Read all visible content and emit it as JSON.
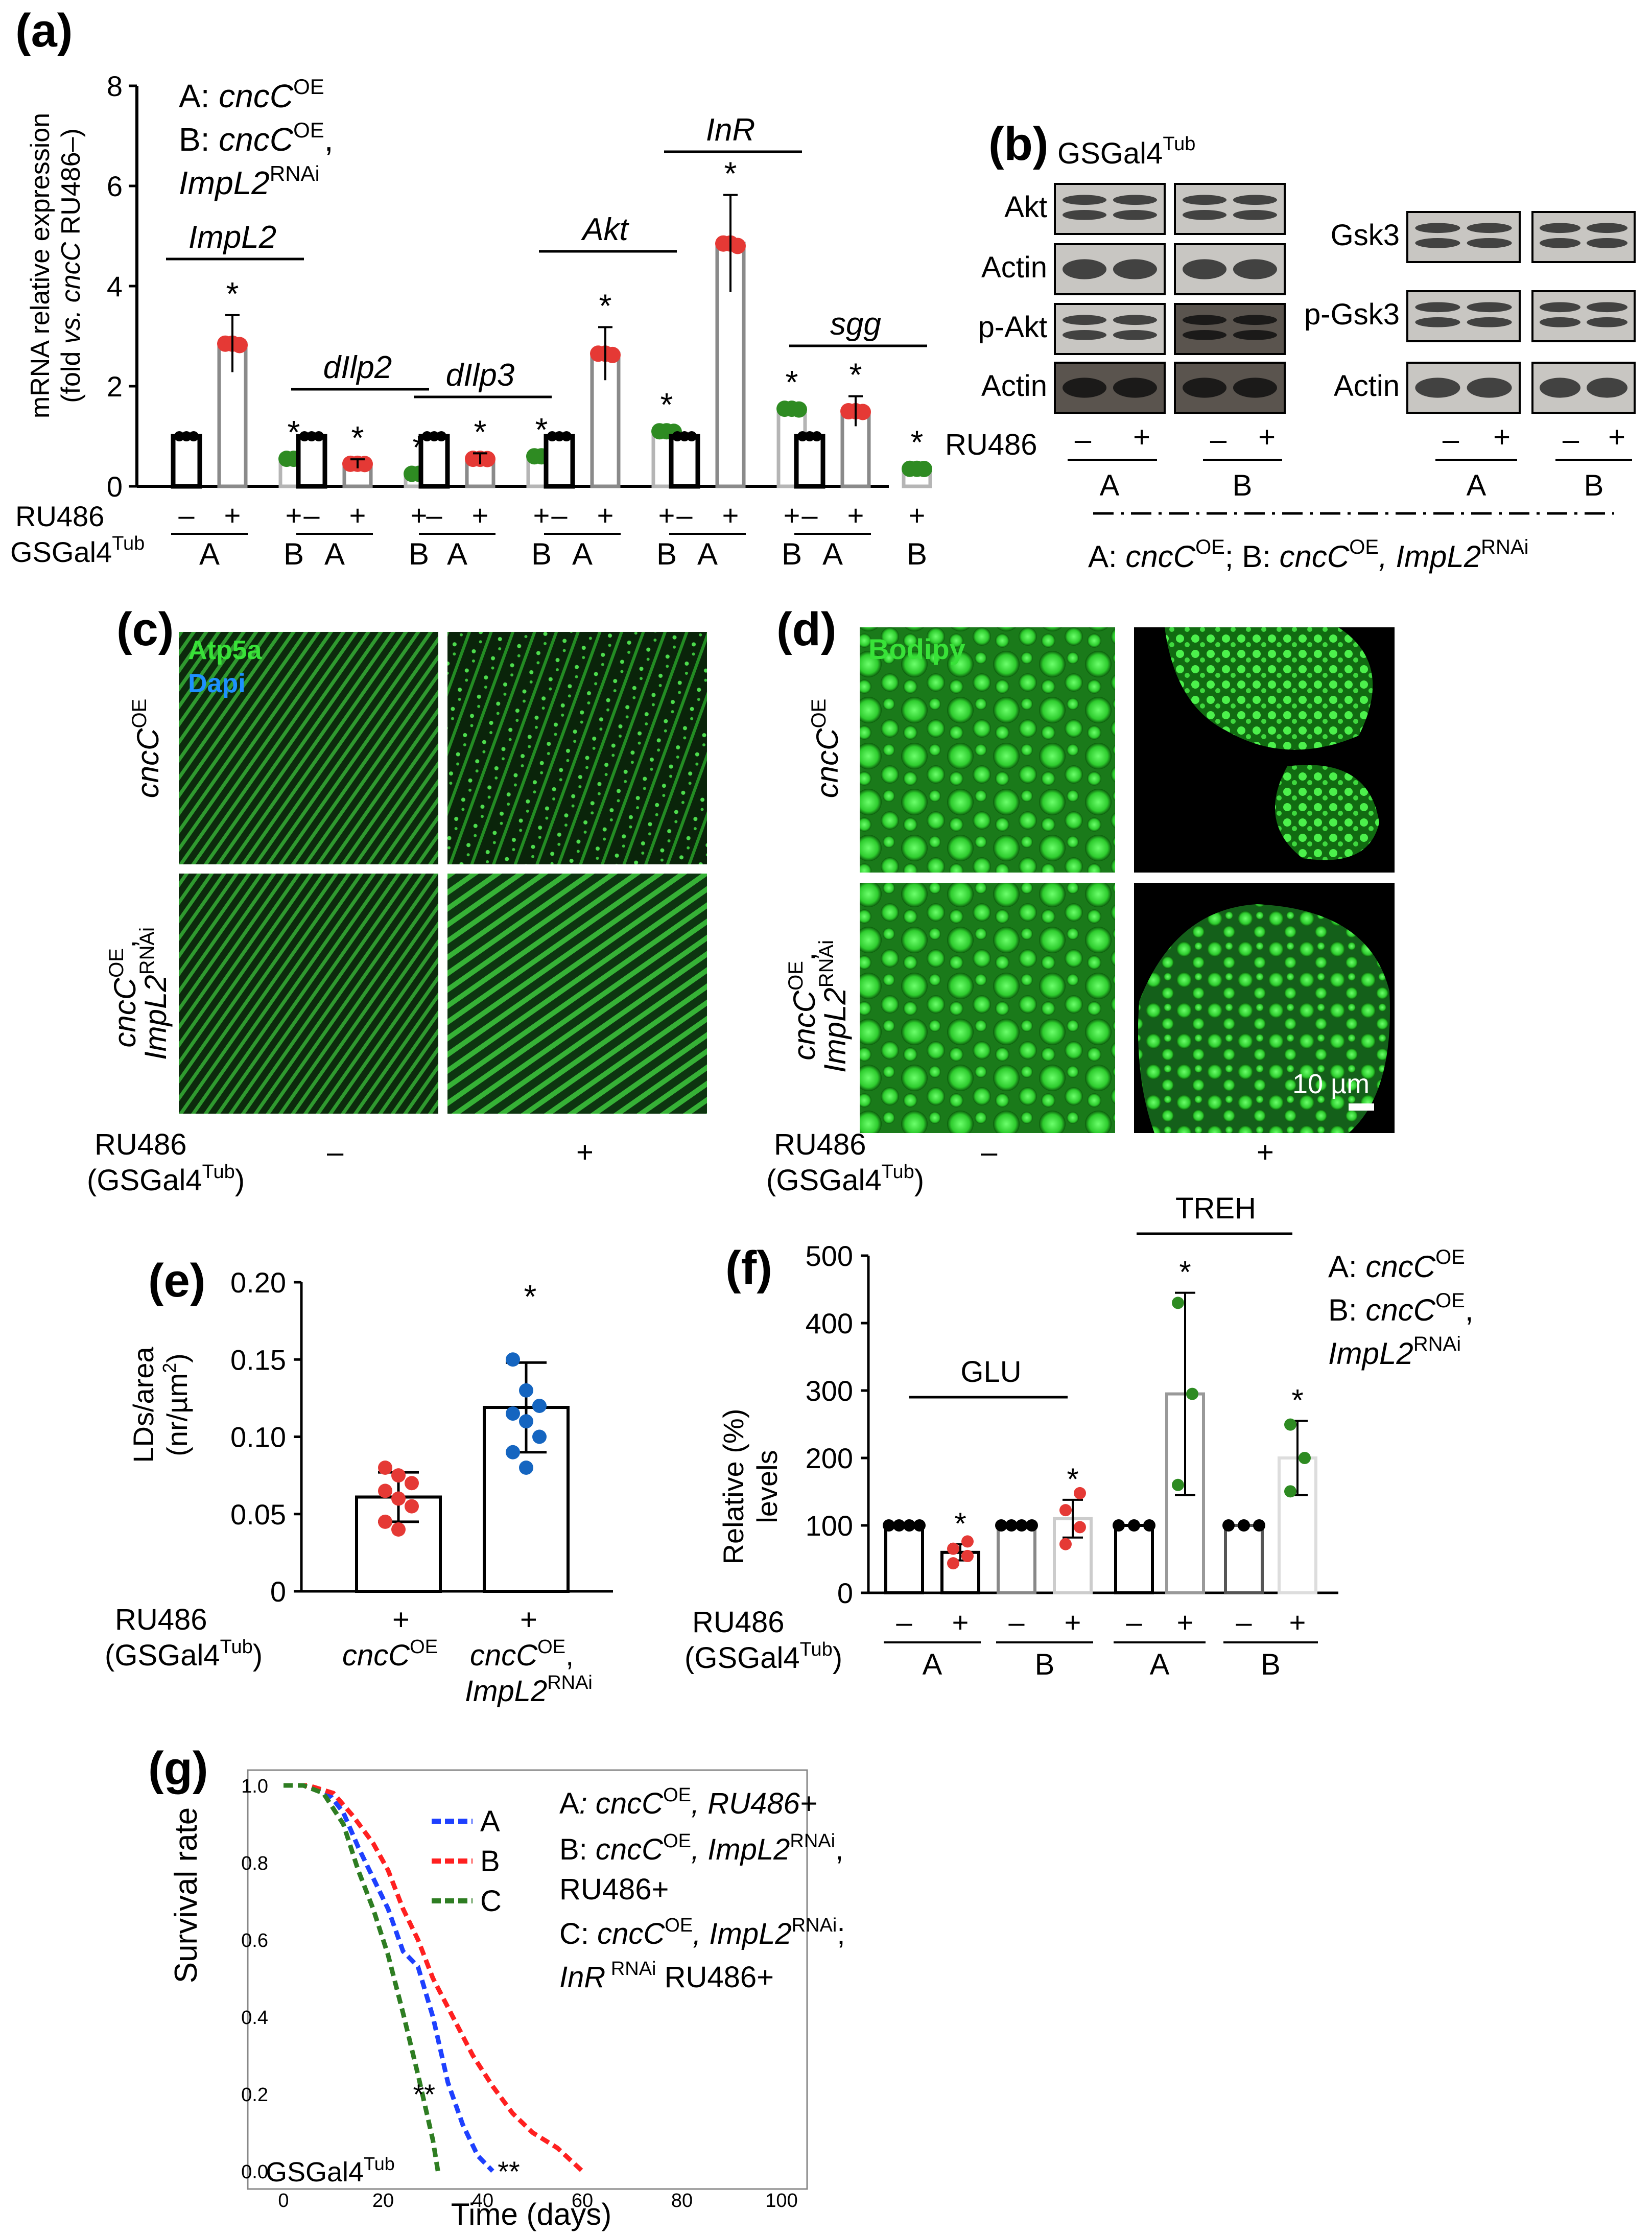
{
  "panel_labels": {
    "a": "(a)",
    "b": "(b)",
    "c": "(c)",
    "d": "(d)",
    "e": "(e)",
    "f": "(f)",
    "g": "(g)"
  },
  "common": {
    "ru486": "RU486",
    "gsgal": "GSGal4",
    "tub": "Tub",
    "minus": "–",
    "plus": "+",
    "star": "*",
    "A": "A",
    "B": "B",
    "C": "C",
    "cncC": "cncC",
    "OE": "OE",
    "impl2": "ImpL2",
    "rnai": "RNAi",
    "A_prefix": "A: ",
    "B_prefix": "B: ",
    "comma": ",",
    "open_paren": "(",
    "close_paren": ")"
  },
  "panel_a": {
    "ylabel_line1": "mRNA relative expression",
    "ylabel_line2_pre": "(fold ",
    "ylabel_line2_vs": "vs. cncC",
    "ylabel_line2_post": " RU486–)",
    "gene_labels": [
      "ImpL2",
      "dIlp2",
      "dIlp3",
      "Akt",
      "InR",
      "sgg"
    ],
    "ruler_row_labels": [
      "RU486",
      "GSGal4"
    ]
  },
  "chart_data": [
    {
      "type": "bar",
      "panel": "a",
      "ylabel": "mRNA relative expression (fold vs. cncC RU486–)",
      "ylim": [
        0,
        8
      ],
      "yticks": [
        0,
        2,
        4,
        6,
        8
      ],
      "categories": [
        "ImpL2",
        "dIlp2",
        "dIlp3",
        "Akt",
        "InR",
        "sgg"
      ],
      "groups": [
        "A RU486–",
        "A RU486+",
        "B RU486+"
      ],
      "series": [
        {
          "name": "A RU486–",
          "values": [
            1,
            1,
            1,
            1,
            1,
            1
          ],
          "color": "#000000"
        },
        {
          "name": "A RU486+",
          "values": [
            2.85,
            0.45,
            0.55,
            2.65,
            4.85,
            1.5
          ],
          "color": "#888888",
          "point_color": "#e53935"
        },
        {
          "name": "B RU486+",
          "values": [
            0.55,
            0.25,
            0.6,
            1.1,
            1.55,
            0.35
          ],
          "color": "#bbbbbb",
          "point_color": "#2e8b22"
        }
      ],
      "significance": [
        "*",
        "*",
        "*",
        "*",
        "*",
        "*"
      ]
    },
    {
      "type": "bar",
      "panel": "e",
      "ylabel": "LDs/area (nr/µm²)",
      "ylim": [
        0,
        0.2
      ],
      "yticks": [
        "0",
        "0.05",
        "0.10",
        "0.15",
        "0.20"
      ],
      "categories": [
        "cncC OE",
        "cncC OE, ImpL2 RNAi"
      ],
      "values": [
        0.061,
        0.119
      ],
      "errors": [
        0.016,
        0.029
      ],
      "points": [
        [
          0.08,
          0.075,
          0.07,
          0.065,
          0.06,
          0.055,
          0.045,
          0.04
        ],
        [
          0.15,
          0.13,
          0.12,
          0.115,
          0.11,
          0.1,
          0.09,
          0.08
        ]
      ],
      "point_colors": [
        "#e53935",
        "#1565c0"
      ]
    },
    {
      "type": "bar",
      "panel": "f",
      "ylabel": "Relative (%) levels",
      "ylim": [
        0,
        500
      ],
      "yticks": [
        0,
        100,
        200,
        300,
        400,
        500
      ],
      "groups": [
        "GLU",
        "TREH"
      ],
      "categories": [
        "A –",
        "A +",
        "B –",
        "B +",
        "A –",
        "A +",
        "B –",
        "B +"
      ],
      "values": [
        100,
        60,
        100,
        110,
        100,
        295,
        100,
        200
      ],
      "errors": [
        0,
        12,
        0,
        28,
        0,
        150,
        0,
        55
      ]
    },
    {
      "type": "line",
      "panel": "g",
      "ylabel": "Survival rate",
      "xlabel": "Time (days)",
      "xlim": [
        0,
        100
      ],
      "ylim": [
        0,
        1
      ],
      "xticks": [
        0,
        20,
        40,
        60,
        80,
        100
      ],
      "yticks": [
        "0.0",
        "0.2",
        "0.4",
        "0.6",
        "0.8",
        "1.0"
      ],
      "series": [
        {
          "name": "A",
          "color": "#1e40ff",
          "x": [
            0,
            5,
            9,
            12,
            15,
            18,
            21,
            24,
            27,
            30,
            33,
            36,
            39,
            42
          ],
          "y": [
            1.0,
            1.0,
            0.98,
            0.93,
            0.84,
            0.76,
            0.68,
            0.57,
            0.53,
            0.4,
            0.23,
            0.12,
            0.04,
            0.0
          ]
        },
        {
          "name": "B",
          "color": "#ff2020",
          "x": [
            0,
            5,
            10,
            14,
            18,
            21,
            24,
            27,
            30,
            34,
            38,
            42,
            46,
            50,
            55,
            60
          ],
          "y": [
            1.0,
            1.0,
            0.98,
            0.92,
            0.85,
            0.78,
            0.68,
            0.6,
            0.5,
            0.4,
            0.3,
            0.22,
            0.15,
            0.1,
            0.06,
            0.0
          ]
        },
        {
          "name": "C",
          "color": "#2e7d22",
          "x": [
            0,
            4,
            8,
            12,
            15,
            18,
            21,
            24,
            27,
            30,
            31
          ],
          "y": [
            1.0,
            1.0,
            0.98,
            0.9,
            0.78,
            0.68,
            0.56,
            0.41,
            0.25,
            0.08,
            0.0
          ]
        }
      ],
      "annotations": [
        "**",
        "**"
      ]
    }
  ],
  "panel_b": {
    "header_gsgal": "GSGal4",
    "left_rows": [
      "Akt",
      "Actin",
      "p-Akt",
      "Actin"
    ],
    "right_rows": [
      "Gsk3",
      "p-Gsk3",
      "Actin"
    ],
    "ru486": "RU486",
    "footer_A": "A: ",
    "footer_sep": "; B: "
  },
  "panel_c": {
    "stain1": "Atp5a",
    "stain2": "Dapi"
  },
  "panel_d": {
    "stain": "Bodipy",
    "scale": "10 µm"
  },
  "panel_e": {
    "ylabel_line1": "LDs/area",
    "ylabel_line2_pre": "(nr/µm",
    "ylabel_line2_sup": "2",
    "ylabel_line2_post": ")",
    "yticks": [
      "0.20",
      "0.15",
      "0.10",
      "0.05",
      "0"
    ]
  },
  "panel_f": {
    "ylabel_line1": "Relative (%)",
    "ylabel_line2": "levels",
    "glu": "GLU",
    "treh": "TREH",
    "yticks": [
      "500",
      "400",
      "300",
      "200",
      "100",
      "0"
    ]
  },
  "panel_g": {
    "ylabel": "Survival rate",
    "xlabel": "Time (days)",
    "yticks": [
      "1.0",
      "0.8",
      "0.6",
      "0.4",
      "0.2",
      "0.0"
    ],
    "xticks": [
      "0",
      "20",
      "40",
      "60",
      "80",
      "100"
    ],
    "legend": [
      "A",
      "B",
      "C"
    ],
    "sig": "**",
    "desc_A_prefix": "A",
    "desc_colon": ": ",
    "desc_A_post": ", RU486+",
    "desc_B_post1": ", ",
    "desc_B_post2": ",",
    "desc_B_line2": "RU486+",
    "desc_C_semicolon": ";",
    "desc_inr": "InR",
    "desc_C_line2_post": " RU486+"
  }
}
